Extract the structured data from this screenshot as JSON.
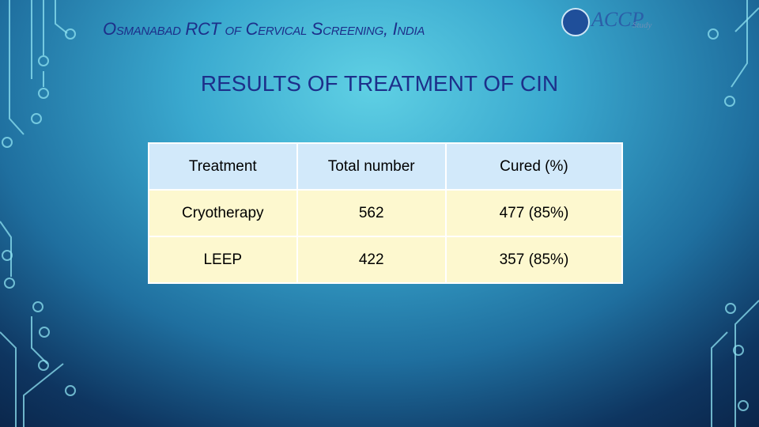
{
  "header": {
    "title": "Osmanabad RCT of Cervical Screening, India"
  },
  "logo": {
    "text": "ACCP",
    "suffix": "Study"
  },
  "subtitle": "RESULTS OF TREATMENT OF CIN",
  "table": {
    "columns": [
      "Treatment",
      "Total number",
      "Cured (%)"
    ],
    "rows": [
      [
        "Cryotherapy",
        "562",
        "477 (85%)"
      ],
      [
        "LEEP",
        "422",
        "357 (85%)"
      ]
    ]
  }
}
